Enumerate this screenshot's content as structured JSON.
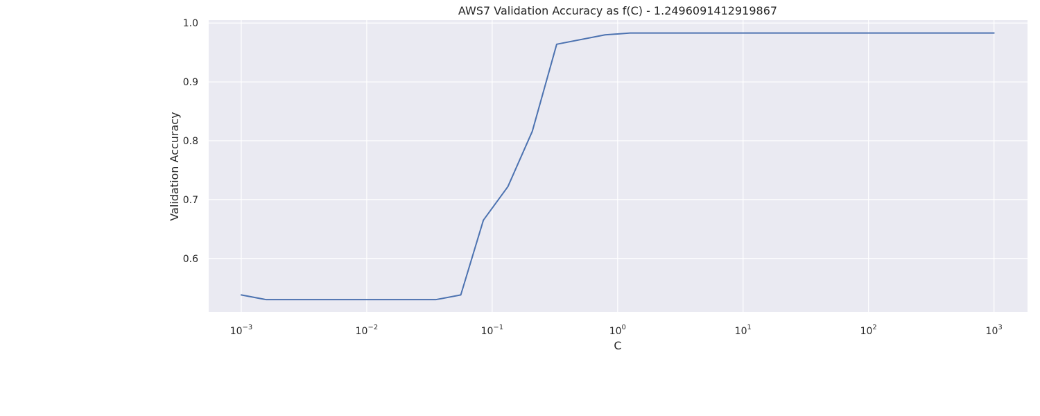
{
  "chart_data": {
    "type": "line",
    "title": "AWS7 Validation Accuracy as f(C) - 1.2496091412919867",
    "xlabel": "C",
    "ylabel": "Validation Accuracy",
    "xscale": "log",
    "grid": true,
    "background_color": "#eaeaf2",
    "grid_color": "#ffffff",
    "line_color": "#4c72b0",
    "xlim": [
      0.00055,
      1850
    ],
    "ylim": [
      0.509,
      1.005
    ],
    "x_ticks": [
      {
        "value": 0.001,
        "base": "10",
        "exp": "−3"
      },
      {
        "value": 0.01,
        "base": "10",
        "exp": "−2"
      },
      {
        "value": 0.1,
        "base": "10",
        "exp": "−1"
      },
      {
        "value": 1,
        "base": "10",
        "exp": "0"
      },
      {
        "value": 10,
        "base": "10",
        "exp": "1"
      },
      {
        "value": 100,
        "base": "10",
        "exp": "2"
      },
      {
        "value": 1000,
        "base": "10",
        "exp": "3"
      }
    ],
    "y_ticks": [
      {
        "value": 0.6,
        "label": "0.6"
      },
      {
        "value": 0.7,
        "label": "0.7"
      },
      {
        "value": 0.8,
        "label": "0.8"
      },
      {
        "value": 0.9,
        "label": "0.9"
      },
      {
        "value": 1.0,
        "label": "1.0"
      }
    ],
    "series": [
      {
        "x": [
          0.001,
          0.00158,
          0.00251,
          0.00398,
          0.00631,
          0.01,
          0.0158,
          0.0251,
          0.0355,
          0.0562,
          0.0851,
          0.1334,
          0.2088,
          0.3268,
          0.794,
          1.259,
          2.0,
          3.162,
          10,
          31.6,
          100,
          316,
          1000
        ],
        "y": [
          0.538,
          0.53,
          0.53,
          0.53,
          0.53,
          0.53,
          0.53,
          0.53,
          0.53,
          0.538,
          0.665,
          0.722,
          0.816,
          0.964,
          0.98,
          0.983,
          0.983,
          0.983,
          0.983,
          0.983,
          0.983,
          0.983,
          0.983
        ]
      }
    ]
  }
}
